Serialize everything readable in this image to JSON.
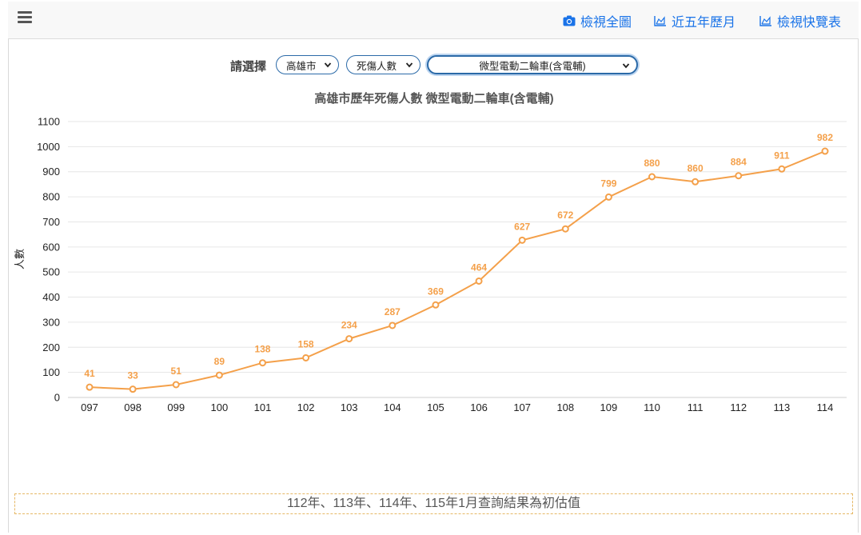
{
  "nav": {
    "links": [
      {
        "label": "檢視全圖",
        "icon": "camera-icon"
      },
      {
        "label": "近五年歷月",
        "icon": "area-chart-icon"
      },
      {
        "label": "檢視快覽表",
        "icon": "area-chart-icon"
      }
    ]
  },
  "selector": {
    "label": "請選擇",
    "city": "高雄市",
    "metric": "死傷人數",
    "vehicle": "微型電動二輪車(含電輔)"
  },
  "note": "112年、113年、114年、115年1月查詢結果為初估值",
  "colors": {
    "series": "#f4a04a",
    "link": "#1a73e8",
    "grid": "#e6e6e6"
  },
  "chart_data": {
    "type": "line",
    "title": "高雄市歷年死傷人數 微型電動二輪車(含電輔)",
    "xlabel": "",
    "ylabel": "人數",
    "categories": [
      "097",
      "098",
      "099",
      "100",
      "101",
      "102",
      "103",
      "104",
      "105",
      "106",
      "107",
      "108",
      "109",
      "110",
      "111",
      "112",
      "113",
      "114"
    ],
    "values": [
      41,
      33,
      51,
      89,
      138,
      158,
      234,
      287,
      369,
      464,
      627,
      672,
      799,
      880,
      860,
      884,
      911,
      982
    ],
    "ylim": [
      0,
      1100
    ],
    "yticks": [
      0,
      100,
      200,
      300,
      400,
      500,
      600,
      700,
      800,
      900,
      1000,
      1100
    ],
    "grid": true,
    "legend": "none",
    "data_labels": true
  }
}
